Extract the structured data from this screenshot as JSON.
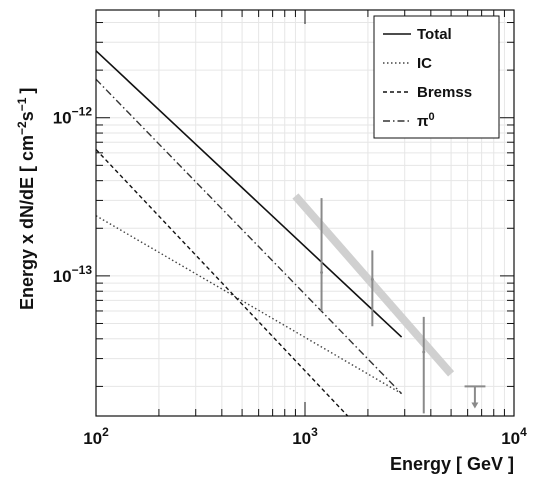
{
  "chart_data": {
    "type": "line",
    "xlabel": "Energy [ GeV ]",
    "ylabel_main": "Energy x dN/dE  [ cm",
    "ylabel_exp1": "−2",
    "ylabel_mid": "s",
    "ylabel_exp2": "−1",
    "ylabel_end": "]",
    "xscale": "log",
    "yscale": "log",
    "xlim": [
      100,
      10000
    ],
    "ylim": [
      1.3e-14,
      4.8e-12
    ],
    "legend_position": "top-right",
    "grid": true,
    "x_ticks": [
      {
        "value": 100,
        "base": "10",
        "exp": "2"
      },
      {
        "value": 1000,
        "base": "10",
        "exp": "3"
      },
      {
        "value": 10000,
        "base": "10",
        "exp": "4"
      }
    ],
    "y_ticks": [
      {
        "value": 1e-12,
        "base": "10",
        "exp": "−12"
      },
      {
        "value": 1e-13,
        "base": "10",
        "exp": "−13"
      }
    ],
    "series": [
      {
        "name": "Total",
        "dash": "solid",
        "color": "#111111",
        "x": [
          100,
          2900
        ],
        "y": [
          2.65e-12,
          4.1e-14
        ]
      },
      {
        "name": "IC",
        "dash": "dotted",
        "color": "#444444",
        "x": [
          100,
          2900
        ],
        "y": [
          2.4e-13,
          1.8e-14
        ]
      },
      {
        "name": "Bremss",
        "dash": "dashed",
        "color": "#111111",
        "x": [
          100,
          1600
        ],
        "y": [
          6.3e-13,
          1.3e-14
        ]
      },
      {
        "name": "π",
        "name_sup": "0",
        "dash": "dashdot",
        "color": "#333333",
        "x": [
          100,
          2900
        ],
        "y": [
          1.75e-12,
          1.8e-14
        ]
      }
    ],
    "fit_band": {
      "color": "#d0d0d0",
      "x": [
        900,
        5000
      ],
      "y": [
        3.2e-13,
        2.4e-14
      ]
    },
    "error_bars": [
      {
        "x": 1200,
        "y": 1.05e-13,
        "y_low": 6e-14,
        "y_high": 3.1e-13
      },
      {
        "x": 2100,
        "y": 9.5e-14,
        "y_low": 4.8e-14,
        "y_high": 1.45e-13
      },
      {
        "x": 3700,
        "y": 3.3e-14,
        "y_low": 1.35e-14,
        "y_high": 5.5e-14
      }
    ],
    "upper_limit": {
      "x": 6500,
      "x_low": 5800,
      "x_high": 7300,
      "y": 2e-14,
      "y_arrow": 1.45e-14
    },
    "colors": {
      "error_bar": "#8a8a8a",
      "grid": "#e6e6e6",
      "frame": "#111111"
    }
  }
}
